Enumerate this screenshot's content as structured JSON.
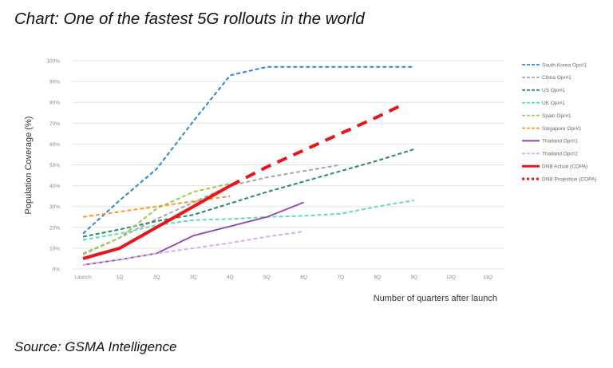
{
  "title": "Chart: One of the fastest 5G rollouts in the world",
  "source": "Source: GSMA Intelligence",
  "chart_data": {
    "type": "line",
    "xlabel": "Number of quarters after launch",
    "ylabel": "Population Coverage (%)",
    "categories": [
      "Launch",
      "1Q",
      "2Q",
      "3Q",
      "4Q",
      "5Q",
      "6Q",
      "7Q",
      "8Q",
      "9Q",
      "10Q",
      "11Q"
    ],
    "yticks": [
      "0%",
      "10%",
      "20%",
      "30%",
      "40%",
      "50%",
      "60%",
      "70%",
      "80%",
      "90%",
      "100%"
    ],
    "ylim": [
      0,
      100
    ],
    "grid": true,
    "legend_position": "right",
    "series": [
      {
        "name": "South Korea Opr#1",
        "color": "#2e86d6",
        "style": "dashed",
        "x": [
          0,
          1,
          2,
          3,
          4,
          5,
          6,
          7,
          8,
          9
        ],
        "values": [
          17,
          33,
          48,
          71,
          93,
          97,
          97,
          97,
          97,
          97
        ]
      },
      {
        "name": "China Opr#1",
        "color": "#a6a6a6",
        "style": "dashed",
        "x": [
          0,
          1,
          2,
          3,
          4,
          5,
          6,
          7
        ],
        "values": [
          7,
          15,
          24,
          32,
          40,
          44,
          47,
          50
        ]
      },
      {
        "name": "US Opr#1",
        "color": "#2b8a5a",
        "style": "dashed",
        "x": [
          0,
          1,
          2,
          3,
          4,
          5,
          6,
          7,
          8,
          9
        ],
        "values": [
          15.5,
          19,
          23,
          26,
          31.5,
          37,
          42,
          47,
          52,
          57.5
        ]
      },
      {
        "name": "UK Opr#1",
        "color": "#5fe0b0",
        "style": "dashed",
        "x": [
          0,
          1,
          2,
          3,
          4,
          5,
          6,
          7,
          8,
          9
        ],
        "values": [
          14,
          17,
          21,
          23.5,
          24,
          25,
          25.5,
          26.5,
          30,
          33
        ]
      },
      {
        "name": "Spain Opr#1",
        "color": "#9ccc4c",
        "style": "dashed",
        "x": [
          0,
          1,
          2,
          3,
          4
        ],
        "values": [
          7.5,
          15,
          29,
          37,
          41
        ]
      },
      {
        "name": "Singapore Opr#1",
        "color": "#f39a34",
        "style": "dashed",
        "x": [
          0,
          1,
          2,
          3,
          4
        ],
        "values": [
          25,
          27.5,
          30,
          32.5,
          35
        ]
      },
      {
        "name": "Thailand Opr#1",
        "color": "#8e44ad",
        "style": "solid",
        "x": [
          0,
          1,
          2,
          3,
          4,
          5,
          6
        ],
        "values": [
          2,
          4.5,
          7.5,
          16,
          20.5,
          25,
          32
        ]
      },
      {
        "name": "Thailand Opr#2",
        "color": "#d8b0e6",
        "style": "dashed",
        "x": [
          0,
          1,
          2,
          3,
          4,
          5,
          6
        ],
        "values": [
          2,
          4.5,
          7.5,
          10,
          12.5,
          15.5,
          18
        ]
      },
      {
        "name": "DNB Actual (COPA)",
        "color": "#e8151b",
        "style": "solid-thick",
        "x": [
          0,
          1,
          2,
          3,
          4
        ],
        "values": [
          5,
          10,
          20,
          30,
          40
        ]
      },
      {
        "name": "DNB Projection (COPA)",
        "color": "#e8151b",
        "style": "dashed-thick",
        "x": [
          4,
          5,
          6,
          7,
          8,
          8.7
        ],
        "values": [
          40,
          49,
          57,
          65,
          73,
          79
        ]
      }
    ]
  }
}
